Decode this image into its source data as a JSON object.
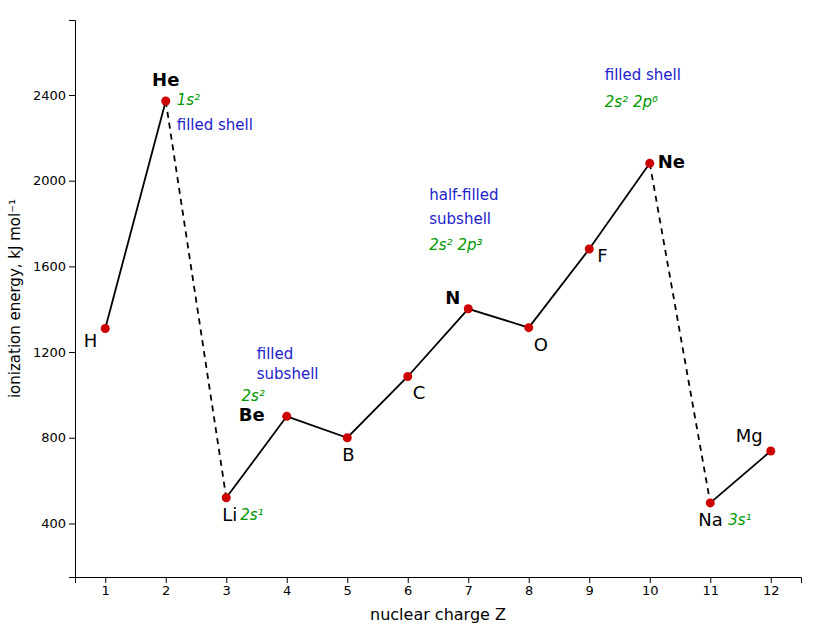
{
  "chart_data": {
    "type": "line",
    "xlabel": "nuclear charge Z",
    "ylabel": "ionization energy, kJ mol⁻¹",
    "x": [
      1,
      2,
      3,
      4,
      5,
      6,
      7,
      8,
      9,
      10,
      11,
      12
    ],
    "series": [
      {
        "color": "#000000",
        "line_style": "solid",
        "values": [
          1310,
          2372,
          null,
          null,
          null,
          null,
          null,
          null,
          null,
          null,
          null,
          null
        ]
      },
      {
        "color": "#000000",
        "line_style": "solid",
        "values": [
          null,
          null,
          520,
          900,
          800,
          1086,
          1402,
          1314,
          1681,
          2081,
          null,
          null
        ]
      },
      {
        "color": "#000000",
        "line_style": "solid",
        "values": [
          null,
          null,
          null,
          null,
          null,
          null,
          null,
          null,
          null,
          null,
          496,
          738
        ]
      },
      {
        "color": "#000000",
        "line_style": "dashed",
        "values": [
          null,
          2372,
          520,
          null,
          null,
          null,
          null,
          null,
          null,
          2081,
          496,
          null
        ]
      },
      {
        "type": "scatter",
        "color": "#cc0000",
        "marker": "circle",
        "values": [
          1310,
          2372,
          520,
          900,
          800,
          1086,
          1402,
          1314,
          1681,
          2081,
          496,
          738
        ]
      }
    ],
    "annotations": [
      {
        "text": "H",
        "color": "#000000"
      },
      {
        "text": "He",
        "color": "#000000"
      },
      {
        "text": "Li",
        "color": "#000000"
      },
      {
        "text": "Be",
        "color": "#000000"
      },
      {
        "text": "B",
        "color": "#000000"
      },
      {
        "text": "C",
        "color": "#000000"
      },
      {
        "text": "N",
        "color": "#000000"
      },
      {
        "text": "O",
        "color": "#000000"
      },
      {
        "text": "F",
        "color": "#000000"
      },
      {
        "text": "Ne",
        "color": "#000000"
      },
      {
        "text": "Na",
        "color": "#000000"
      },
      {
        "text": "Mg",
        "color": "#000000"
      },
      {
        "text": "1s²",
        "color": "#009900"
      },
      {
        "text": "filled shell",
        "color": "#2222cc"
      },
      {
        "text": "2s¹",
        "color": "#009900"
      },
      {
        "text": "filled",
        "color": "#2222cc"
      },
      {
        "text": "subshell",
        "color": "#2222cc"
      },
      {
        "text": "2s²",
        "color": "#009900"
      },
      {
        "text": "half-filled",
        "color": "#2222cc"
      },
      {
        "text": "subshell",
        "color": "#2222cc"
      },
      {
        "text": "2s² 2p³",
        "color": "#009900"
      },
      {
        "text": "filled shell",
        "color": "#2222cc"
      },
      {
        "text": "2s² 2p⁶",
        "color": "#009900"
      },
      {
        "text": "3s¹",
        "color": "#009900"
      }
    ],
    "xlim": [
      0.5,
      12.5
    ],
    "ylim": [
      150,
      2750
    ],
    "xticks": [
      1,
      2,
      3,
      4,
      5,
      6,
      7,
      8,
      9,
      10,
      11,
      12
    ],
    "yticks": [
      400,
      800,
      1200,
      1600,
      2000,
      2400
    ],
    "grid": false
  }
}
